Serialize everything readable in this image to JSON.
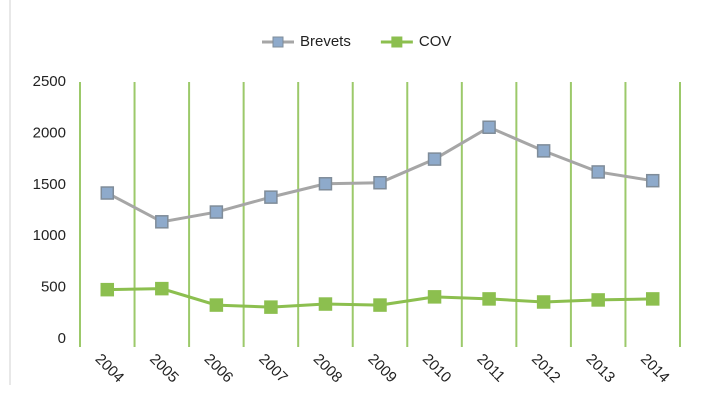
{
  "chart_data": {
    "type": "line",
    "categories": [
      "2004",
      "2005",
      "2006",
      "2007",
      "2008",
      "2009",
      "2010",
      "2011",
      "2012",
      "2013",
      "2014"
    ],
    "series": [
      {
        "name": "Brevets",
        "color": "#a6a6a6",
        "marker_color": "#8eaacb",
        "values": [
          1420,
          1140,
          1235,
          1380,
          1510,
          1520,
          1750,
          2060,
          1830,
          1625,
          1540
        ]
      },
      {
        "name": "COV",
        "color": "#8cbf4f",
        "marker_color": "#8cbf4f",
        "values": [
          480,
          490,
          330,
          310,
          340,
          330,
          410,
          390,
          360,
          380,
          390
        ]
      }
    ],
    "ylim": [
      0,
      2500
    ],
    "yticks": [
      0,
      500,
      1000,
      1500,
      2000,
      2500
    ],
    "category_dividers": true,
    "legend": "top"
  }
}
